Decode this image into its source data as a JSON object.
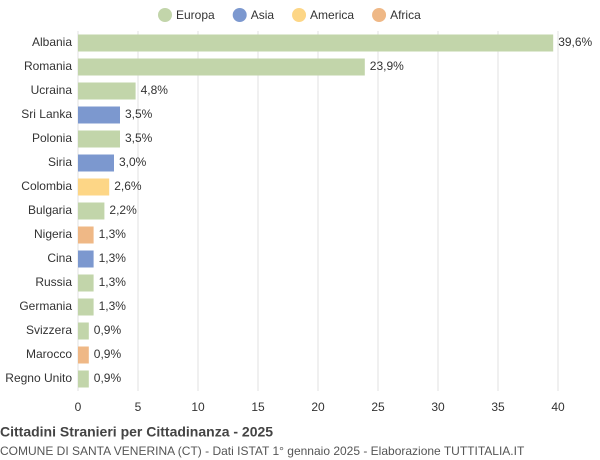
{
  "chart_data": {
    "type": "bar",
    "orientation": "horizontal",
    "title": "Cittadini Stranieri per Cittadinanza - 2025",
    "subtitle": "COMUNE DI SANTA VENERINA (CT) - Dati ISTAT 1° gennaio 2025 - Elaborazione TUTTITALIA.IT",
    "categories": [
      "Albania",
      "Romania",
      "Ucraina",
      "Sri Lanka",
      "Polonia",
      "Siria",
      "Colombia",
      "Bulgaria",
      "Nigeria",
      "Cina",
      "Russia",
      "Germania",
      "Svizzera",
      "Marocco",
      "Regno Unito"
    ],
    "series": [
      {
        "name": "Europa",
        "color": "#c2d5aa",
        "values": [
          39.6,
          23.9,
          4.8,
          null,
          3.5,
          null,
          null,
          2.2,
          null,
          null,
          1.3,
          1.3,
          0.9,
          null,
          0.9
        ],
        "value_labels": [
          "39,6%",
          "23,9%",
          "4,8%",
          null,
          "3,5%",
          null,
          null,
          "2,2%",
          null,
          null,
          "1,3%",
          "1,3%",
          "0,9%",
          null,
          "0,9%"
        ]
      },
      {
        "name": "Asia",
        "color": "#7c98cf",
        "values": [
          null,
          null,
          null,
          3.5,
          null,
          3.0,
          null,
          null,
          null,
          1.3,
          null,
          null,
          null,
          null,
          null
        ],
        "value_labels": [
          null,
          null,
          null,
          "3,5%",
          null,
          "3,0%",
          null,
          null,
          null,
          "1,3%",
          null,
          null,
          null,
          null,
          null
        ]
      },
      {
        "name": "America",
        "color": "#fdd686",
        "values": [
          null,
          null,
          null,
          null,
          null,
          null,
          2.6,
          null,
          null,
          null,
          null,
          null,
          null,
          null,
          null
        ],
        "value_labels": [
          null,
          null,
          null,
          null,
          null,
          null,
          "2,6%",
          null,
          null,
          null,
          null,
          null,
          null,
          null,
          null
        ]
      },
      {
        "name": "Africa",
        "color": "#efb886",
        "values": [
          null,
          null,
          null,
          null,
          null,
          null,
          null,
          null,
          1.3,
          null,
          null,
          null,
          null,
          0.9,
          null
        ],
        "value_labels": [
          null,
          null,
          null,
          null,
          null,
          null,
          null,
          null,
          "1,3%",
          null,
          null,
          null,
          null,
          "0,9%",
          null
        ]
      }
    ],
    "xlim": [
      0,
      40
    ],
    "xticks": [
      0,
      5,
      10,
      15,
      20,
      25,
      30,
      35,
      40
    ],
    "grid": true,
    "legend": "top"
  }
}
